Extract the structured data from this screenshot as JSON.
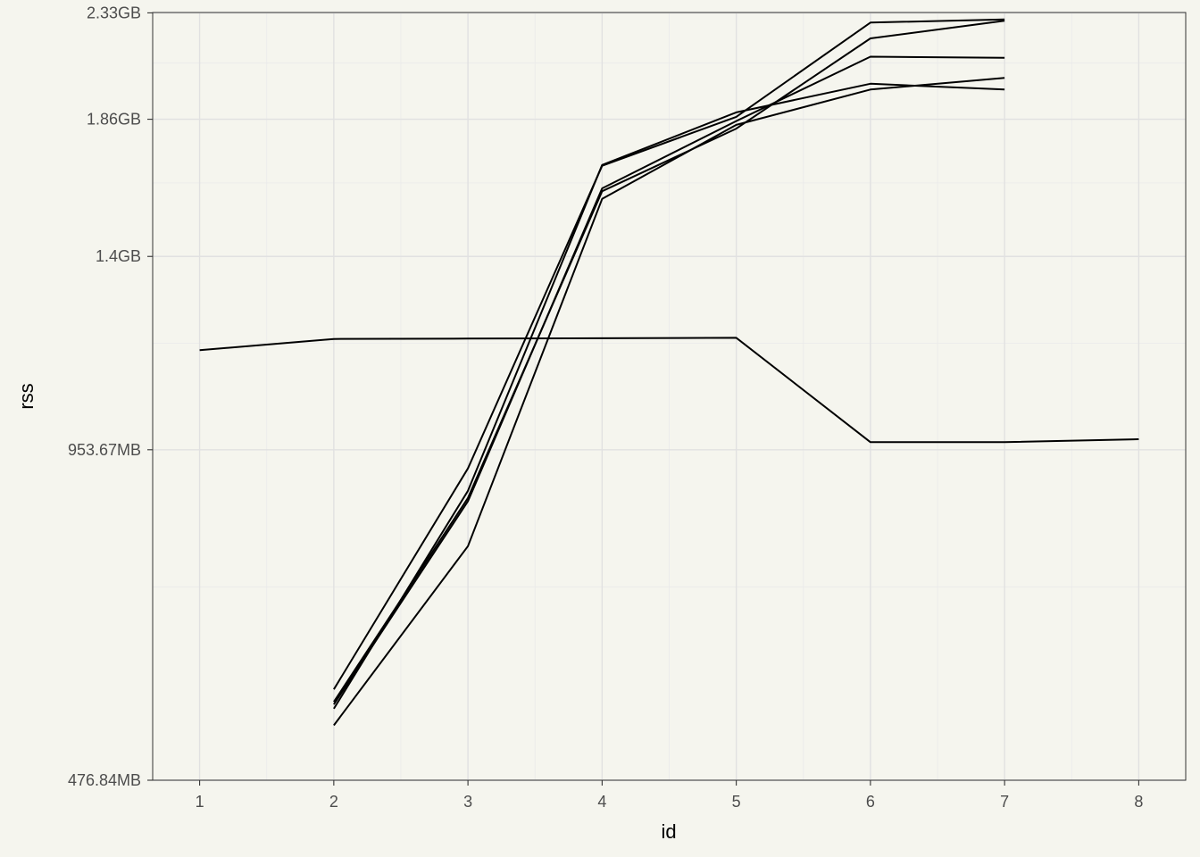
{
  "chart_data": {
    "type": "line",
    "title": "",
    "xlabel": "id",
    "ylabel": "rss",
    "scale_y": "log",
    "xlim": [
      0.65,
      8.35
    ],
    "ylim_mb": [
      476.84,
      2386.0
    ],
    "x_ticks": [
      1,
      2,
      3,
      4,
      5,
      6,
      7,
      8
    ],
    "x_tick_labels": [
      "1",
      "2",
      "3",
      "4",
      "5",
      "6",
      "7",
      "8"
    ],
    "y_ticks_mb": [
      476.84,
      953.67,
      1430.51,
      1907.35,
      2384.19
    ],
    "y_tick_labels": [
      "476.84MB",
      "953.67MB",
      "1.4GB",
      "1.86GB",
      "2.33GB"
    ],
    "y_minor_ticks_mb": [
      715.26,
      1192.09,
      1668.93,
      2145.77
    ],
    "grid": true,
    "legend": "none",
    "line_color": "#000000",
    "series": [
      {
        "x": [
          1,
          2,
          3,
          4,
          5,
          6,
          7,
          8
        ],
        "y_mb": [
          1175,
          1203,
          1204,
          1205,
          1206,
          969,
          969,
          975
        ]
      },
      {
        "x": [
          2,
          3,
          4,
          5,
          6,
          7
        ],
        "y_mb": [
          577,
          917,
          1730,
          1917,
          2336,
          2352
        ]
      },
      {
        "x": [
          2,
          3,
          4,
          5,
          6,
          7
        ],
        "y_mb": [
          562,
          862,
          1640,
          1870,
          2260,
          2345
        ]
      },
      {
        "x": [
          2,
          3,
          4,
          5,
          6,
          7
        ],
        "y_mb": [
          559,
          856,
          1650,
          1900,
          2175,
          2170
        ]
      },
      {
        "x": [
          2,
          3,
          4,
          5,
          6,
          7
        ],
        "y_mb": [
          554,
          875,
          1733,
          1935,
          2055,
          2030
        ]
      },
      {
        "x": [
          2,
          3,
          4,
          5,
          6,
          7
        ],
        "y_mb": [
          535,
          779,
          1614,
          1885,
          2030,
          2080
        ]
      }
    ]
  }
}
